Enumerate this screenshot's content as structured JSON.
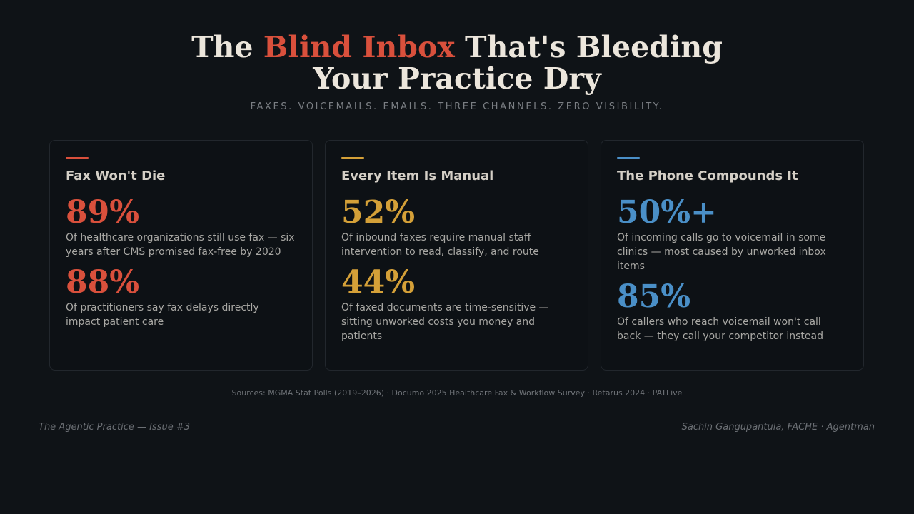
{
  "header": {
    "title_pre": "The ",
    "title_highlight": "Blind Inbox",
    "title_post": " That's Bleeding",
    "title_line2": "Your Practice Dry",
    "subtitle": "FAXES. VOICEMAILS. EMAILS. THREE CHANNELS. ZERO VISIBILITY."
  },
  "colors": {
    "red": "#d9503c",
    "gold": "#d4a038",
    "blue": "#4a8fc7"
  },
  "cards": [
    {
      "title": "Fax Won't Die",
      "accent": "#d9503c",
      "stats": [
        {
          "value": "89%",
          "desc": "Of healthcare organizations still use fax — six years after CMS promised fax-free by 2020"
        },
        {
          "value": "88%",
          "desc": "Of practitioners say fax delays directly impact patient care"
        }
      ]
    },
    {
      "title": "Every Item Is Manual",
      "accent": "#d4a038",
      "stats": [
        {
          "value": "52%",
          "desc": "Of inbound faxes require manual staff intervention to read, classify, and route"
        },
        {
          "value": "44%",
          "desc": "Of faxed documents are time-sensitive — sitting unworked costs you money and patients"
        }
      ]
    },
    {
      "title": "The Phone Compounds It",
      "accent": "#4a8fc7",
      "stats": [
        {
          "value": "50%+",
          "desc": "Of incoming calls go to voicemail in some clinics — most caused by unworked inbox items"
        },
        {
          "value": "85%",
          "desc": "Of callers who reach voicemail won't call back — they call your competitor instead"
        }
      ]
    }
  ],
  "sources": "Sources: MGMA Stat Polls (2019–2026) · Documo 2025 Healthcare Fax & Workflow Survey · Retarus 2024 · PATLive",
  "footer": {
    "left": "The Agentic Practice — Issue #3",
    "right": "Sachin Gangupantula, FACHE · Agentman"
  }
}
